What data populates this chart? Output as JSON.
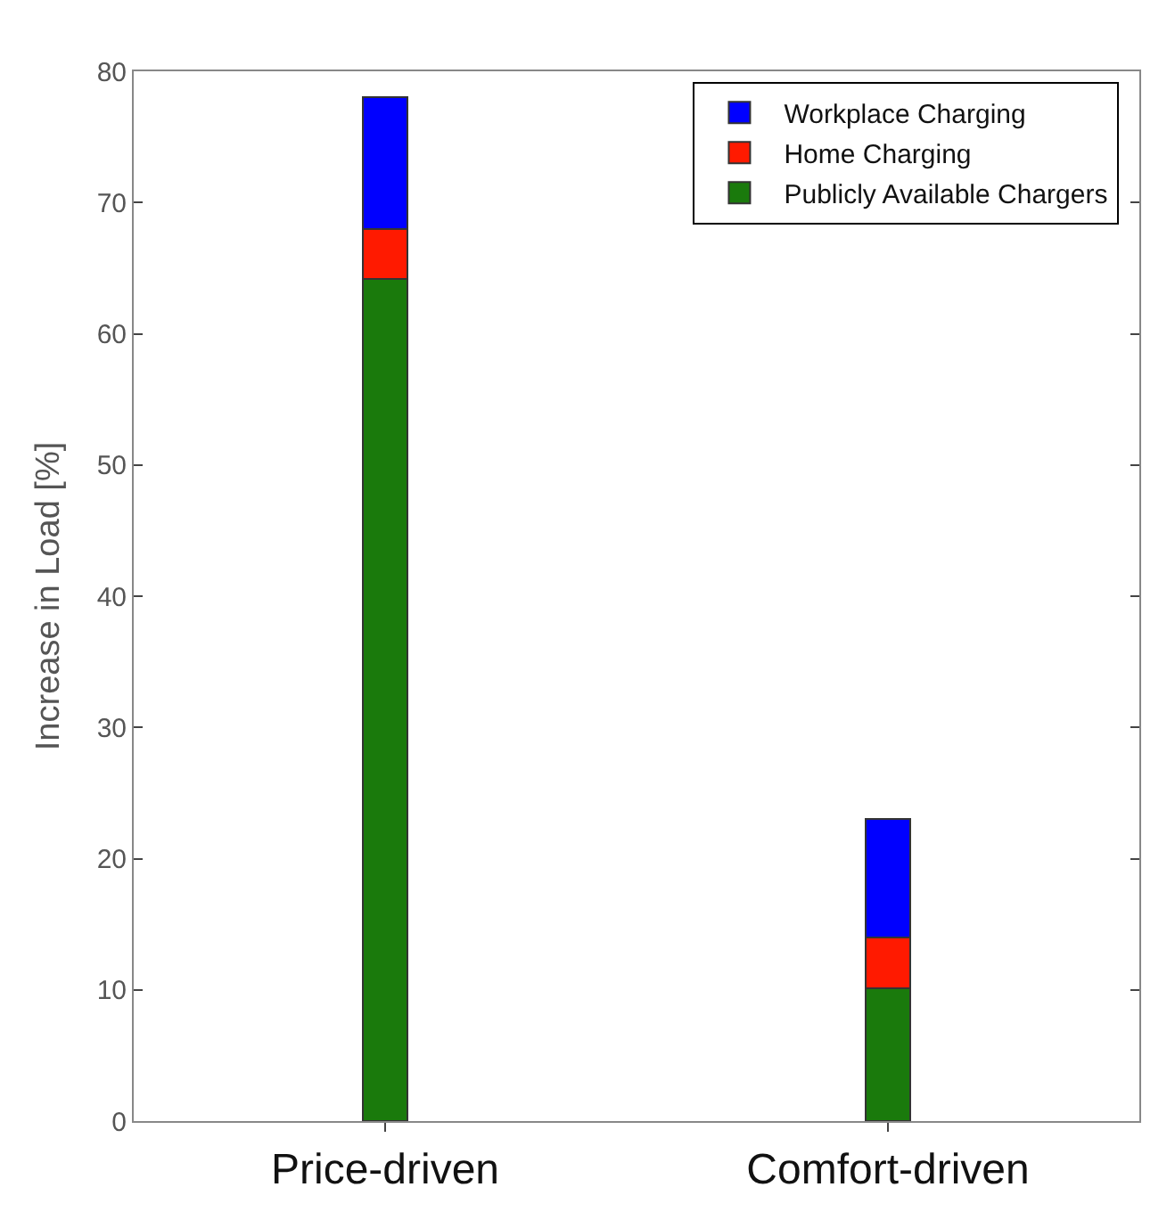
{
  "chart_data": {
    "type": "bar",
    "stacked": true,
    "ylabel": "Increase in Load [%]",
    "categories": [
      "Price-driven",
      "Comfort-driven"
    ],
    "series": [
      {
        "name": "Publicly Available Chargers",
        "color": "#1a7a0c",
        "values": [
          64.2,
          10.1
        ]
      },
      {
        "name": "Home Charging",
        "color": "#ff1a00",
        "values": [
          3.8,
          3.9
        ]
      },
      {
        "name": "Workplace Charging",
        "color": "#0000ff",
        "values": [
          10,
          9.0
        ]
      }
    ],
    "ylim": [
      0,
      80
    ],
    "yticks": [
      0,
      10,
      20,
      30,
      40,
      50,
      60,
      70,
      80
    ],
    "legend": "top right"
  }
}
